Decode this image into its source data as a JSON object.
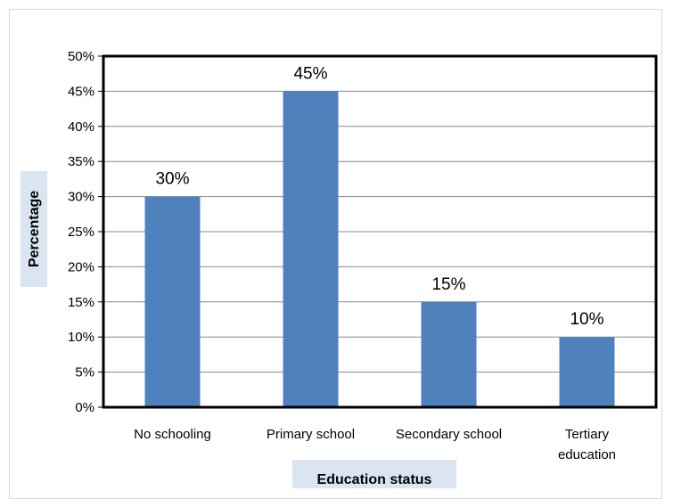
{
  "chart_data": {
    "type": "bar",
    "categories": [
      "No schooling",
      "Primary school",
      "Secondary school",
      "Tertiary education"
    ],
    "category_lines": [
      [
        "No schooling"
      ],
      [
        "Primary school"
      ],
      [
        "Secondary school"
      ],
      [
        "Tertiary",
        "education"
      ]
    ],
    "values": [
      30,
      45,
      15,
      10
    ],
    "data_labels": [
      "30%",
      "45%",
      "15%",
      "10%"
    ],
    "y_ticks": [
      "0%",
      "5%",
      "10%",
      "15%",
      "20%",
      "25%",
      "30%",
      "35%",
      "40%",
      "45%",
      "50%"
    ],
    "title": "",
    "xlabel": "Education status",
    "ylabel": "Percentage",
    "ylim": [
      0,
      50
    ],
    "grid": true,
    "colors": {
      "bar": "#4f81bd",
      "grid": "#888888",
      "axis_title_bg": "#dbe5f1",
      "plot_border": "#000000"
    }
  }
}
